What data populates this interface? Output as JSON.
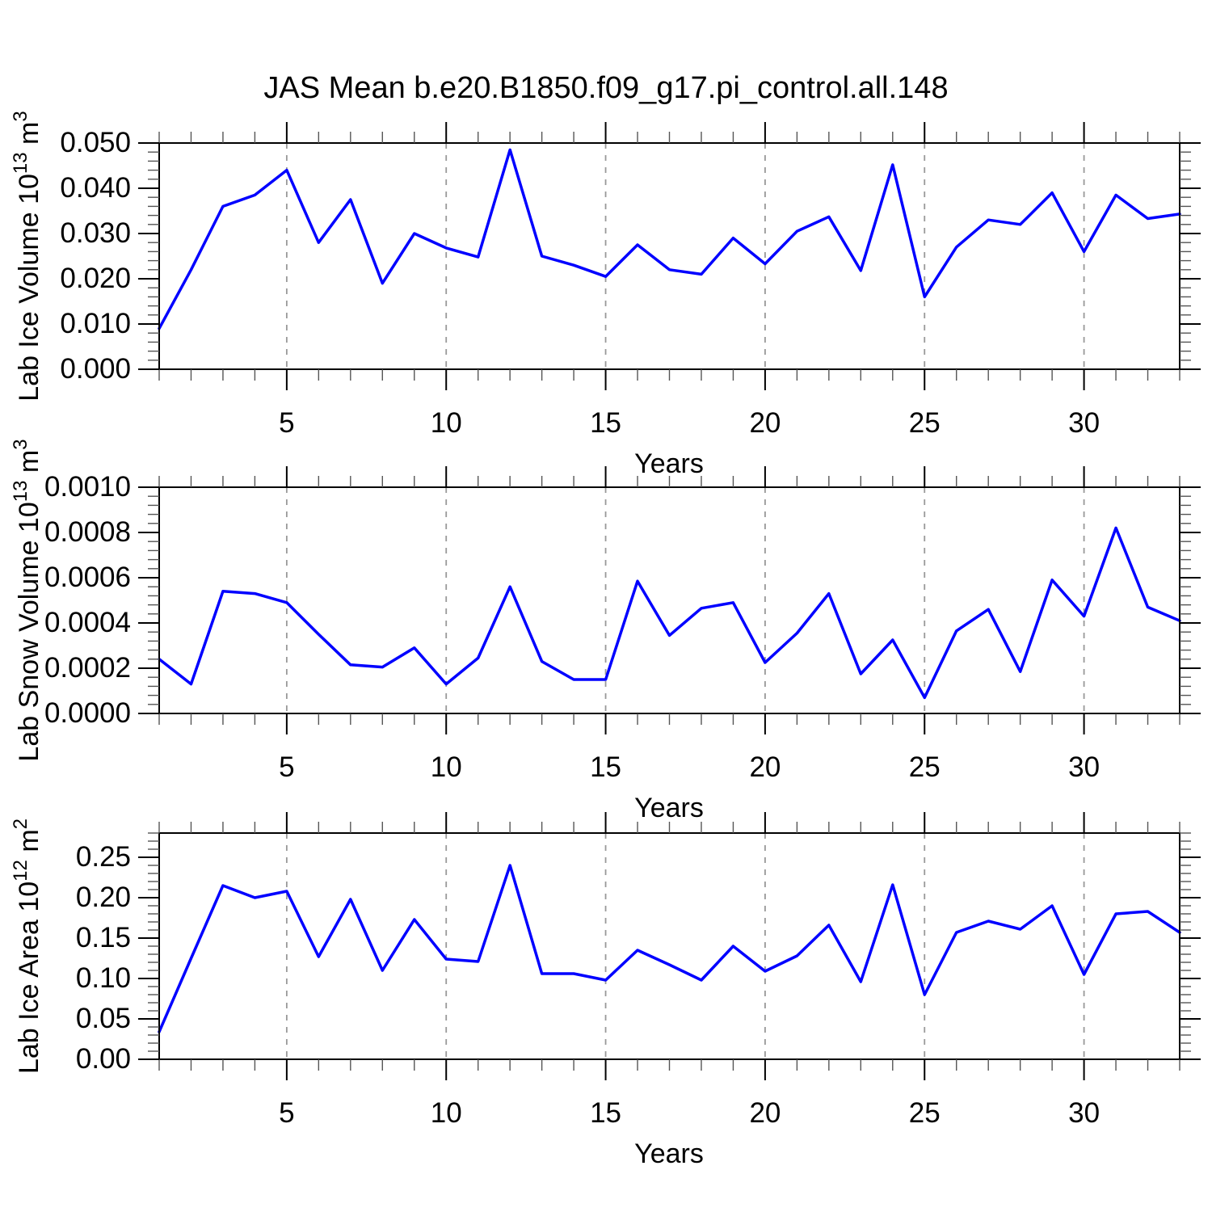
{
  "title": "JAS Mean b.e20.B1850.f09_g17.pi_control.all.148",
  "style": {
    "line_color": "#0000ff",
    "grid_color": "#999999",
    "axis_color": "#000000",
    "minor_tick_color": "#555555"
  },
  "x_axis": {
    "label": "Years",
    "ticks": [
      5,
      10,
      15,
      20,
      25,
      30
    ],
    "minor_step": 1,
    "lim": [
      1,
      33
    ],
    "grid_years": [
      5,
      10,
      15,
      20,
      25,
      30
    ]
  },
  "chart_data": [
    {
      "type": "line",
      "ylabel_base": "Lab Ice Volume 10",
      "ylabel_exp": "13",
      "ylabel_unit": " m",
      "ylabel_unit_exp": "3",
      "xlabel": "Years",
      "ylim": [
        0,
        0.05
      ],
      "y_minor_step": 0.002,
      "yticks": [
        0,
        0.01,
        0.02,
        0.03,
        0.04,
        0.05
      ],
      "ytick_labels": [
        "0.000",
        "0.010",
        "0.020",
        "0.030",
        "0.040",
        "0.050"
      ],
      "x": [
        1,
        2,
        3,
        4,
        5,
        6,
        7,
        8,
        9,
        10,
        11,
        12,
        13,
        14,
        15,
        16,
        17,
        18,
        19,
        20,
        21,
        22,
        23,
        24,
        25,
        26,
        27,
        28,
        29,
        30,
        31,
        32,
        33
      ],
      "values": [
        0.009,
        0.022,
        0.036,
        0.0385,
        0.044,
        0.028,
        0.0375,
        0.019,
        0.03,
        0.0268,
        0.0248,
        0.0485,
        0.025,
        0.023,
        0.0205,
        0.0275,
        0.022,
        0.021,
        0.029,
        0.0233,
        0.0305,
        0.0337,
        0.0218,
        0.0452,
        0.016,
        0.027,
        0.033,
        0.032,
        0.039,
        0.026,
        0.0385,
        0.0333,
        0.0343
      ]
    },
    {
      "type": "line",
      "ylabel_base": "Lab Snow Volume 10",
      "ylabel_exp": "13",
      "ylabel_unit": " m",
      "ylabel_unit_exp": "3",
      "xlabel": "Years",
      "ylim": [
        0,
        0.001
      ],
      "y_minor_step": 4e-05,
      "yticks": [
        0,
        0.0002,
        0.0004,
        0.0006,
        0.0008,
        0.001
      ],
      "ytick_labels": [
        "0.0000",
        "0.0002",
        "0.0004",
        "0.0006",
        "0.0008",
        "0.0010"
      ],
      "x": [
        1,
        2,
        3,
        4,
        5,
        6,
        7,
        8,
        9,
        10,
        11,
        12,
        13,
        14,
        15,
        16,
        17,
        18,
        19,
        20,
        21,
        22,
        23,
        24,
        25,
        26,
        27,
        28,
        29,
        30,
        31,
        32,
        33
      ],
      "values": [
        0.00024,
        0.00013,
        0.00054,
        0.00053,
        0.00049,
        0.00035,
        0.000215,
        0.000205,
        0.00029,
        0.00013,
        0.000245,
        0.00056,
        0.00023,
        0.00015,
        0.00015,
        0.000585,
        0.000345,
        0.000465,
        0.00049,
        0.000225,
        0.000355,
        0.00053,
        0.000175,
        0.000325,
        7e-05,
        0.000365,
        0.00046,
        0.000185,
        0.00059,
        0.00043,
        0.00082,
        0.00047,
        0.00041
      ]
    },
    {
      "type": "line",
      "ylabel_base": "Lab Ice Area 10",
      "ylabel_exp": "12",
      "ylabel_unit": " m",
      "ylabel_unit_exp": "2",
      "xlabel": "Years",
      "ylim": [
        0,
        0.28
      ],
      "y_minor_step": 0.01,
      "yticks": [
        0,
        0.05,
        0.1,
        0.15,
        0.2,
        0.25
      ],
      "ytick_labels": [
        "0.00",
        "0.05",
        "0.10",
        "0.15",
        "0.20",
        "0.25"
      ],
      "x": [
        1,
        2,
        3,
        4,
        5,
        6,
        7,
        8,
        9,
        10,
        11,
        12,
        13,
        14,
        15,
        16,
        17,
        18,
        19,
        20,
        21,
        22,
        23,
        24,
        25,
        26,
        27,
        28,
        29,
        30,
        31,
        32,
        33
      ],
      "values": [
        0.034,
        0.125,
        0.215,
        0.2,
        0.208,
        0.127,
        0.198,
        0.11,
        0.173,
        0.124,
        0.121,
        0.24,
        0.106,
        0.106,
        0.098,
        0.135,
        0.117,
        0.098,
        0.14,
        0.109,
        0.128,
        0.166,
        0.096,
        0.216,
        0.08,
        0.157,
        0.171,
        0.161,
        0.19,
        0.105,
        0.18,
        0.183,
        0.157
      ]
    }
  ]
}
